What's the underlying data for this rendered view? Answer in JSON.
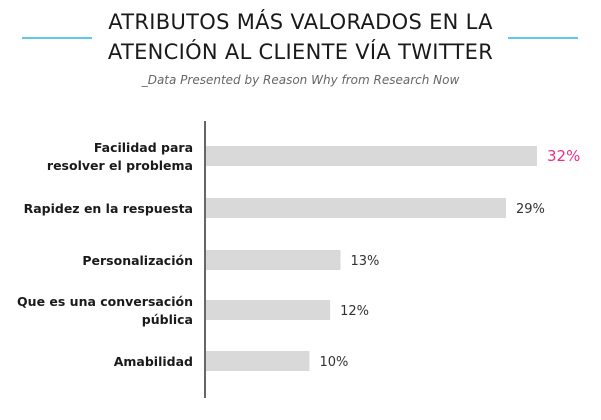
{
  "header": {
    "title_line_1": "ATRIBUTOS MÁS VALORADOS EN LA",
    "title_line_2": "ATENCIÓN AL CLIENTE VÍA TWITTER",
    "subtitle": "_Data Presented by Reason Why from Research Now"
  },
  "colors": {
    "title_rule": "#5ec8e6",
    "bar": "#d9d9d9",
    "axis": "#333333",
    "label": "#1a1a1a",
    "value_label": "#333333",
    "highlight_value_label": "#e8308a"
  },
  "chart_data": {
    "type": "bar",
    "orientation": "horizontal",
    "title": "ATRIBUTOS MÁS VALORADOS EN LA ATENCIÓN AL CLIENTE VÍA TWITTER",
    "subtitle": "_Data Presented by Reason Why from Research Now",
    "categories": [
      [
        "Facilidad para",
        "resolver el problema"
      ],
      [
        "Rapidez en la respuesta"
      ],
      [
        "Personalización"
      ],
      [
        "Que es una conversación",
        "pública"
      ],
      [
        "Amabilidad"
      ]
    ],
    "values": [
      32,
      29,
      13,
      12,
      10
    ],
    "value_labels": [
      "32%",
      "29%",
      "13%",
      "12%",
      "10%"
    ],
    "unit": "%",
    "xlim": [
      0,
      32
    ],
    "highlight_index": 0,
    "grid": false,
    "legend": "none"
  }
}
